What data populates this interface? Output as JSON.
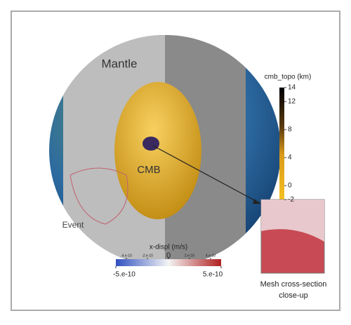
{
  "labels": {
    "mantle": "Mantle",
    "core": "CMB",
    "event": "Event"
  },
  "colorbars": [
    {
      "title": "cmb_topo (km)",
      "ticks": [
        14,
        12,
        8,
        4,
        0,
        -2
      ]
    },
    {
      "title": "x-displ (m/s)",
      "ticks": [
        {
          "value": -4e-10,
          "label": "-4.e-10"
        },
        {
          "value": -2e-10,
          "label": "-2.e-10"
        },
        {
          "value": 0,
          "label": "0"
        },
        {
          "value": 2e-10,
          "label": "2.e-10"
        },
        {
          "value": 4e-10,
          "label": "4.e-10"
        }
      ],
      "ends": [
        {
          "value": -5e-10,
          "label": "-5.e-10"
        },
        {
          "value": 5e-10,
          "label": "5.e-10"
        }
      ]
    }
  ],
  "inset": {
    "caption": [
      "Mesh cross-section",
      "close-up"
    ]
  }
}
